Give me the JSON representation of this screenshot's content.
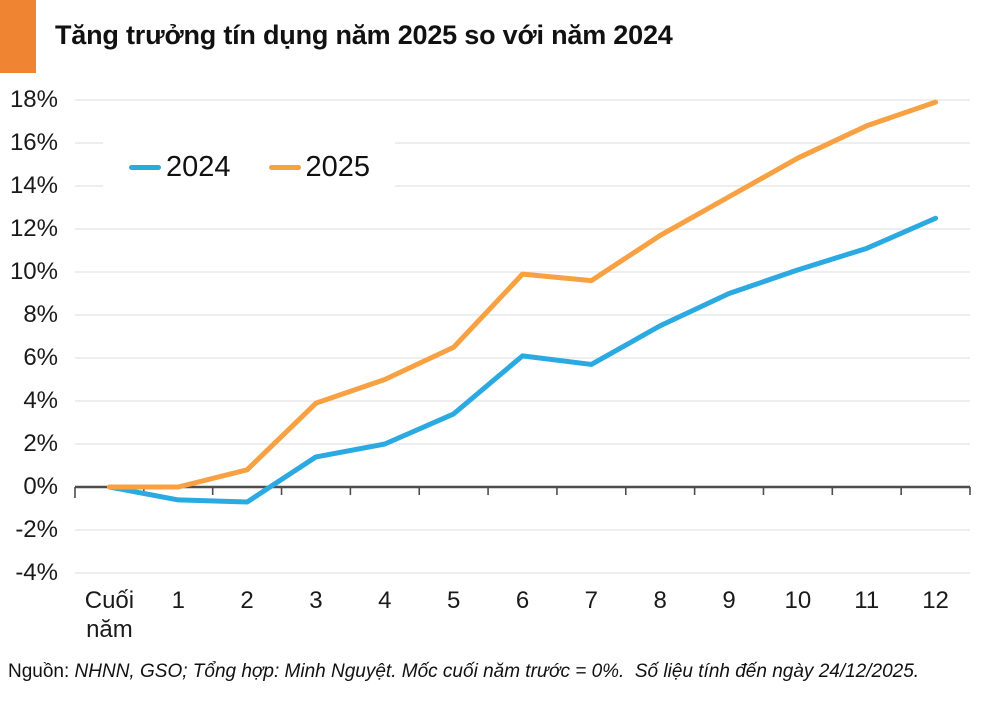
{
  "header": {
    "title": "Tăng trưởng tín dụng năm 2025 so với năm 2024",
    "accent_color": "#ef8432"
  },
  "chart_data": {
    "type": "line",
    "categories": [
      "Cuối năm",
      "1",
      "2",
      "3",
      "4",
      "5",
      "6",
      "7",
      "8",
      "9",
      "10",
      "11",
      "12"
    ],
    "series": [
      {
        "name": "2024",
        "color": "#2ba9e1",
        "values": [
          0,
          -0.6,
          -0.7,
          1.4,
          2.0,
          3.4,
          6.1,
          5.7,
          7.5,
          9.0,
          10.1,
          11.1,
          12.5
        ]
      },
      {
        "name": "2025",
        "color": "#f7a142",
        "values": [
          0,
          0.0,
          0.8,
          3.9,
          5.0,
          6.5,
          9.9,
          9.6,
          11.7,
          13.5,
          15.3,
          16.8,
          17.9
        ]
      }
    ],
    "title": "Tăng trưởng tín dụng năm 2025 so với năm 2024",
    "xlabel": "",
    "ylabel": "",
    "ylim": [
      -4,
      18
    ],
    "yticks": [
      18,
      16,
      14,
      12,
      10,
      8,
      6,
      4,
      2,
      0,
      -2,
      -4
    ],
    "ytick_suffix": "%",
    "grid": true,
    "legend_position": "top-left-inside",
    "colors": {
      "grid": "#e3e3e3",
      "axis": "#4d4d4d",
      "text": "#1a1a1a"
    }
  },
  "footer": {
    "source_regular": "Nguồn: ",
    "source_italic": "NHNN, GSO; Tổng hợp: Minh Nguyệt. Mốc cuối năm trước = 0%.  Số liệu tính đến ngày 24/12/2025."
  }
}
